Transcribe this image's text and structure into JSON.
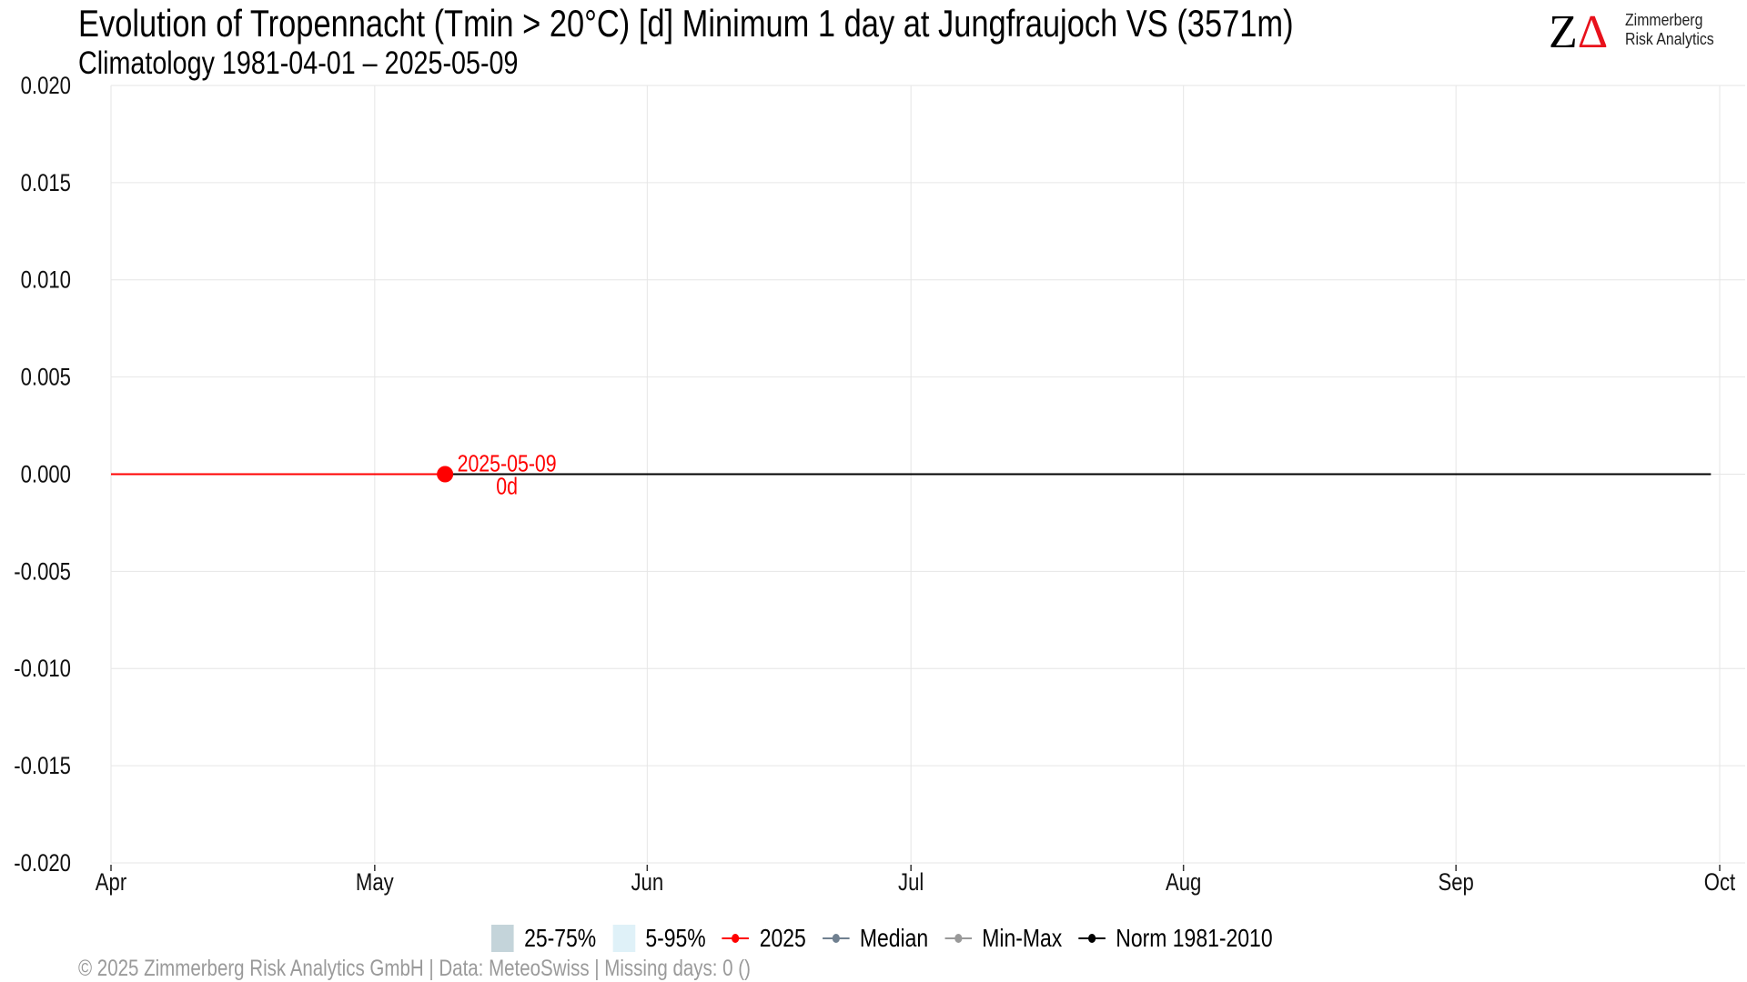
{
  "header": {
    "title": "Evolution of Tropennacht (Tmin > 20°C) [d] Minimum 1 day at Jungfraujoch  VS (3571m)",
    "subtitle": "Climatology 1981-04-01 – 2025-05-09"
  },
  "logo": {
    "mark_z": "Z",
    "mark_delta": "Δ",
    "line1": "Zimmerberg",
    "line2": "Risk Analytics"
  },
  "colors": {
    "current": "#ff0000",
    "norm": "#000000",
    "median": "#708090",
    "minmax": "#999999",
    "iqr": "#c4d4da",
    "p5_95": "#dff1f8",
    "grid": "#e6e6e6"
  },
  "chart_data": {
    "type": "line",
    "title": "Evolution of Tropennacht (Tmin > 20°C) [d] Minimum 1 day at Jungfraujoch  VS (3571m)",
    "subtitle": "Climatology 1981-04-01 – 2025-05-09",
    "xlabel": "",
    "ylabel": "",
    "xlim": [
      "2025-04-01",
      "2025-10-01"
    ],
    "ylim": [
      -0.02,
      0.02
    ],
    "x_ticks": [
      {
        "date": "2025-04-01",
        "label": "Apr"
      },
      {
        "date": "2025-05-01",
        "label": "May"
      },
      {
        "date": "2025-06-01",
        "label": "Jun"
      },
      {
        "date": "2025-07-01",
        "label": "Jul"
      },
      {
        "date": "2025-08-01",
        "label": "Aug"
      },
      {
        "date": "2025-09-01",
        "label": "Sep"
      },
      {
        "date": "2025-10-01",
        "label": "Oct"
      }
    ],
    "y_ticks": [
      0.02,
      0.015,
      0.01,
      0.005,
      0,
      -0.005,
      -0.01,
      -0.015,
      -0.02
    ],
    "y_tick_labels": [
      "0.020",
      "0.015",
      "0.010",
      "0.005",
      "0.000",
      "-0.005",
      "-0.010",
      "-0.015",
      "-0.020"
    ],
    "grid": true,
    "legend_position": "bottom",
    "series": [
      {
        "name": "Norm 1981-2010",
        "x": [
          "2025-04-01",
          "2025-09-30"
        ],
        "values": [
          0,
          0
        ]
      },
      {
        "name": "2025",
        "x": [
          "2025-04-01",
          "2025-05-09"
        ],
        "values": [
          0,
          0
        ]
      }
    ],
    "annotation": {
      "date": "2025-05-09",
      "value": 0,
      "label_date": "2025-05-09",
      "label_value": "0d"
    }
  },
  "legend": {
    "items": [
      {
        "label": "25-75%",
        "kind": "box",
        "color": "#c4d4da"
      },
      {
        "label": "5-95%",
        "kind": "box",
        "color": "#dff1f8"
      },
      {
        "label": "2025",
        "kind": "line",
        "color": "#ff0000"
      },
      {
        "label": "Median",
        "kind": "line",
        "color": "#708090"
      },
      {
        "label": "Min-Max",
        "kind": "line",
        "color": "#999999"
      },
      {
        "label": "Norm 1981-2010",
        "kind": "line",
        "color": "#000000"
      }
    ]
  },
  "footer": {
    "text": "©  2025 Zimmerberg Risk Analytics GmbH | Data: MeteoSwiss | Missing days: 0 ()"
  }
}
